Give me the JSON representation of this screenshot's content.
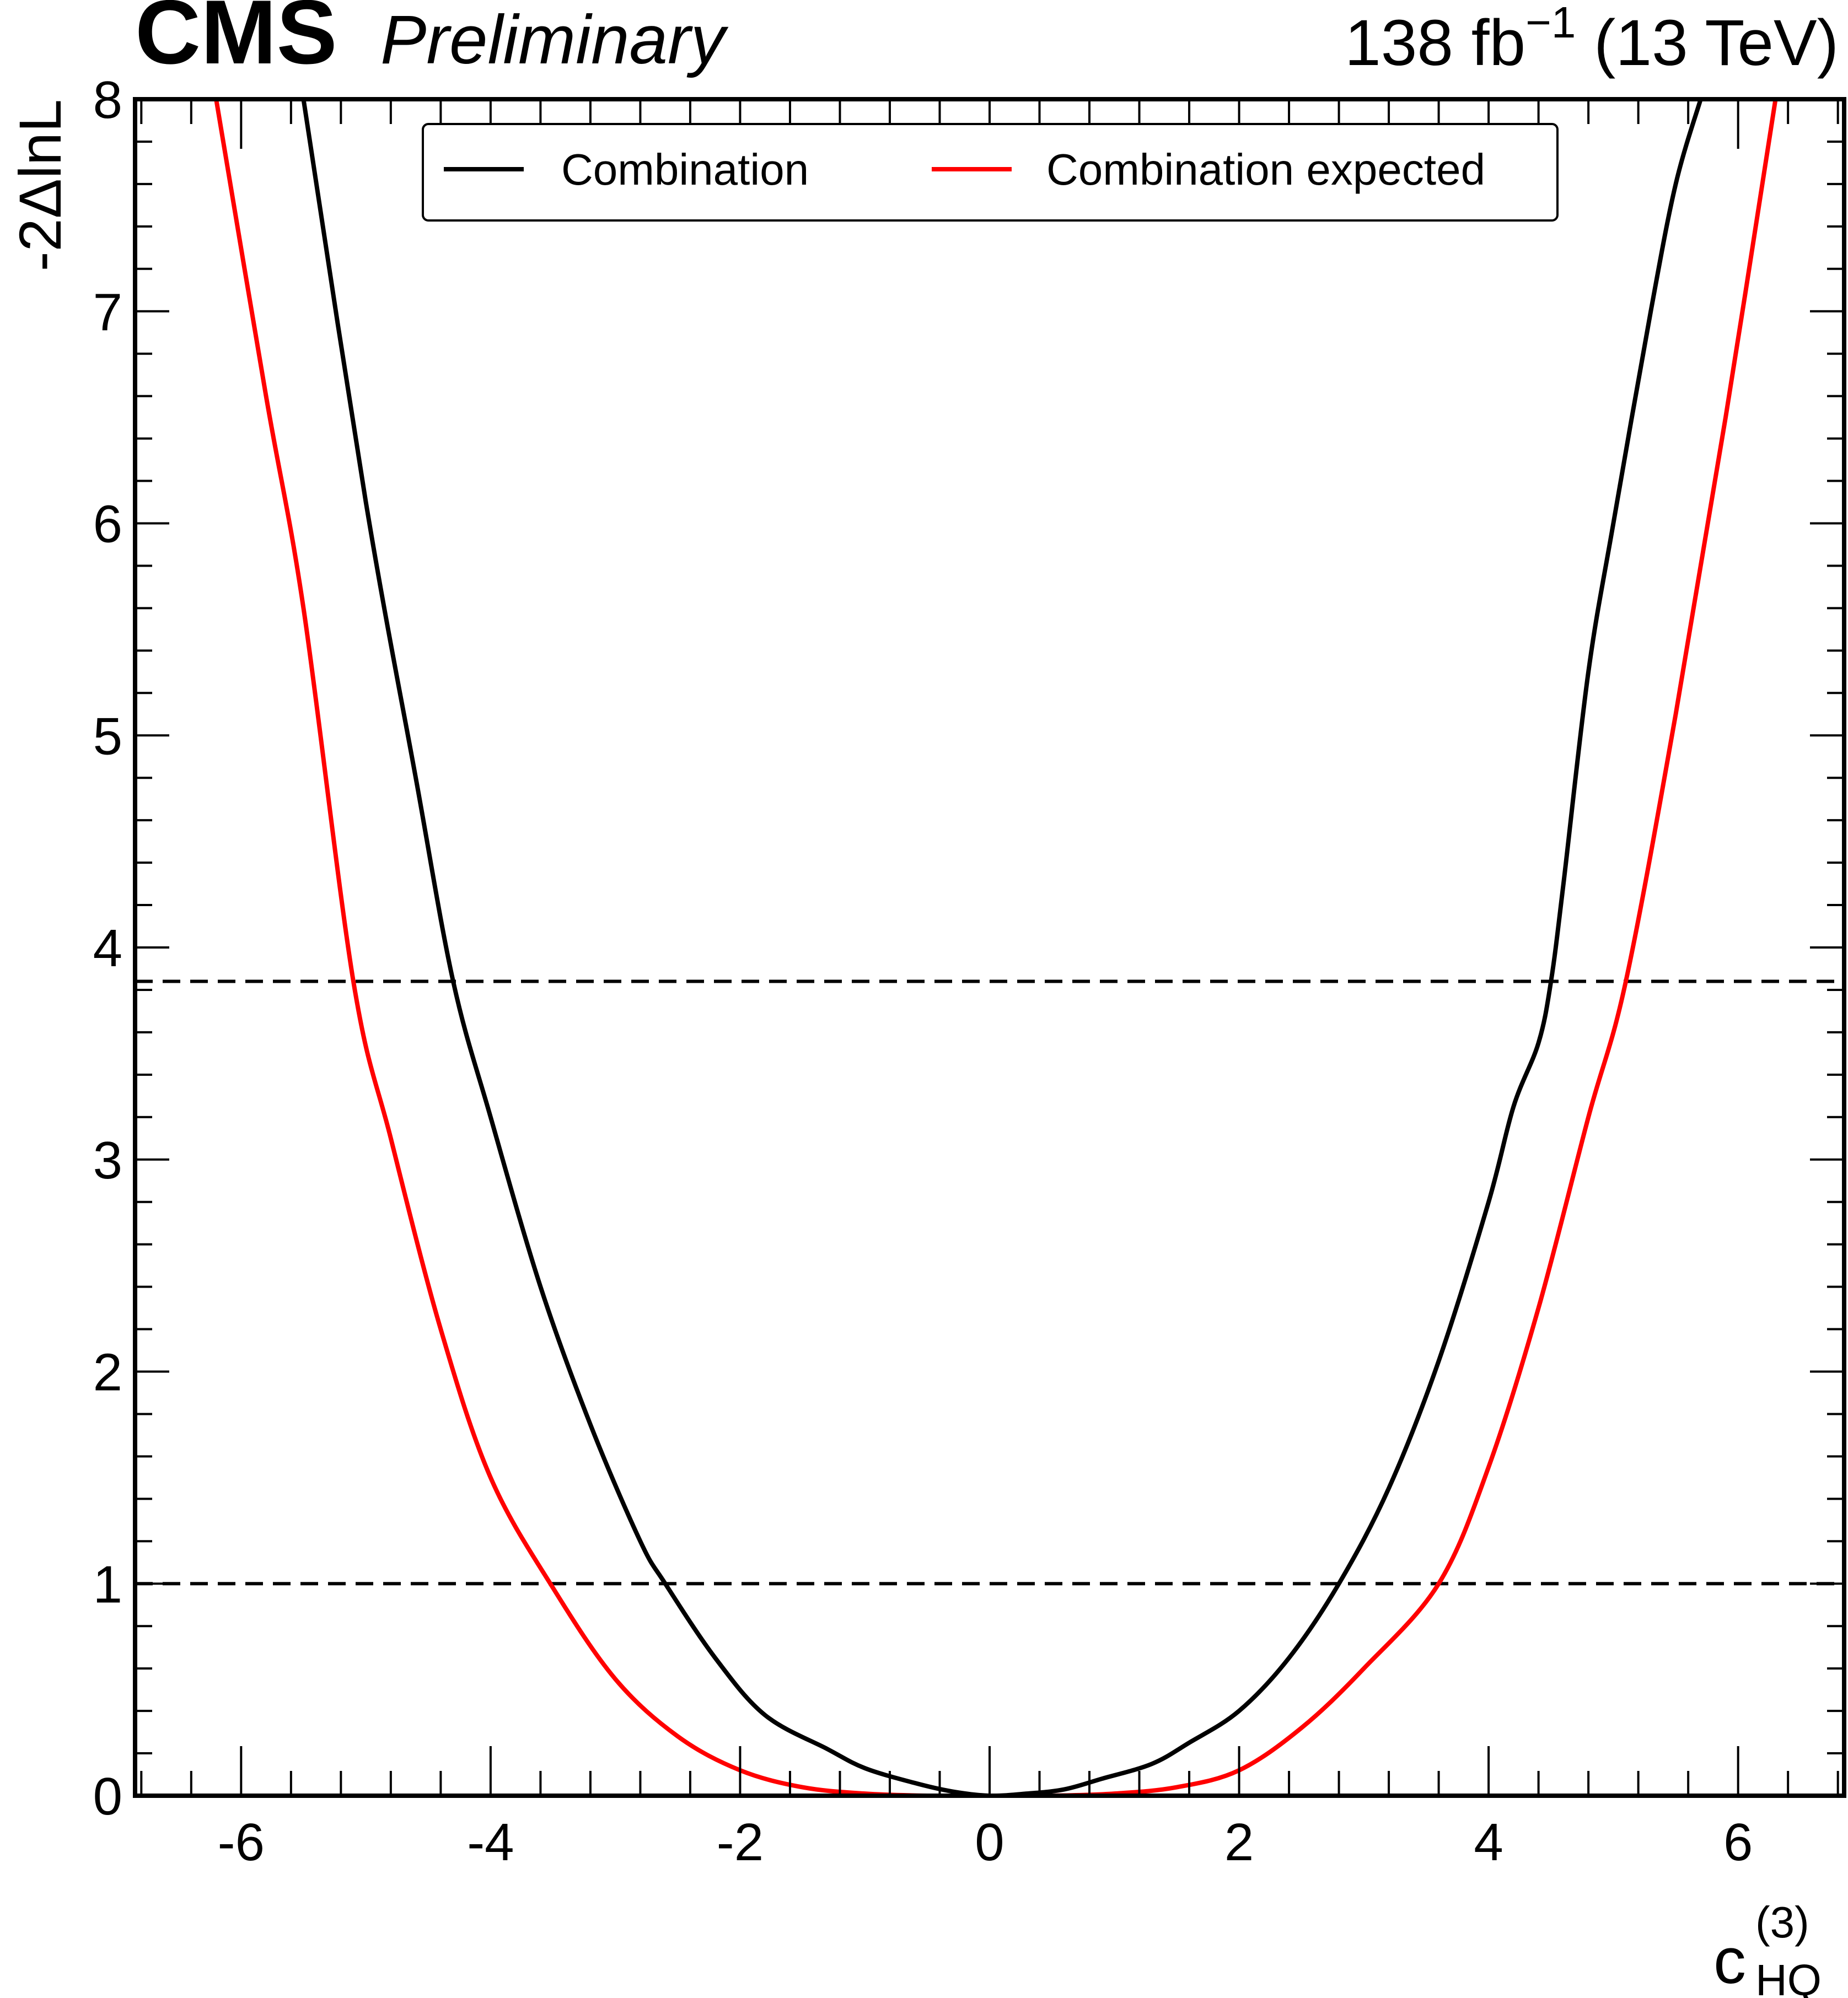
{
  "header": {
    "experiment": "CMS",
    "status": "Preliminary",
    "lumi": "138 fb",
    "lumi_exp": "−1",
    "energy": " (13 TeV)"
  },
  "chart_data": {
    "type": "line",
    "xlabel": "c",
    "xlabel_sub": "HQ",
    "xlabel_sup": "(3)",
    "ylabel": "-2ΔlnL",
    "xlim": [
      -6.85,
      6.85
    ],
    "ylim": [
      0,
      8
    ],
    "x_ticks": [
      -6,
      -4,
      -2,
      0,
      2,
      4,
      6
    ],
    "x_tick_labels": [
      "-6",
      "-4",
      "-2",
      "0",
      "2",
      "4",
      "6"
    ],
    "y_ticks": [
      0,
      1,
      2,
      3,
      4,
      5,
      6,
      7,
      8
    ],
    "y_tick_labels": [
      "0",
      "1",
      "2",
      "3",
      "4",
      "5",
      "6",
      "7",
      "8"
    ],
    "grid": false,
    "legend_position": "top-center",
    "reference_lines": [
      {
        "y": 1.0,
        "style": "dashed",
        "color": "#000000"
      },
      {
        "y": 3.84,
        "style": "dashed",
        "color": "#000000"
      }
    ],
    "series": [
      {
        "name": "Combination",
        "color": "#000000",
        "x": [
          -5.5,
          -5.0,
          -4.6,
          -4.3,
          -4.0,
          -3.6,
          -3.2,
          -2.8,
          -2.6,
          -2.2,
          -1.8,
          -1.3,
          -1.0,
          -0.6,
          -0.3,
          0.0,
          0.3,
          0.6,
          0.9,
          1.3,
          1.6,
          2.0,
          2.4,
          2.8,
          3.2,
          3.6,
          4.0,
          4.2,
          4.4,
          4.5,
          4.6,
          4.8,
          5.0,
          5.3,
          5.5,
          5.7
        ],
        "y": [
          8.0,
          6.1,
          4.8,
          3.84,
          3.2,
          2.4,
          1.75,
          1.2,
          1.0,
          0.65,
          0.38,
          0.22,
          0.13,
          0.06,
          0.02,
          0.0,
          0.01,
          0.03,
          0.08,
          0.15,
          0.25,
          0.4,
          0.65,
          1.0,
          1.45,
          2.05,
          2.8,
          3.25,
          3.55,
          3.84,
          4.3,
          5.3,
          6.0,
          7.0,
          7.6,
          8.0
        ]
      },
      {
        "name": "Combination expected",
        "color": "#ff0000",
        "x": [
          -6.2,
          -5.8,
          -5.5,
          -5.1,
          -4.8,
          -4.4,
          -4.0,
          -3.5,
          -3.0,
          -2.5,
          -2.0,
          -1.5,
          -1.0,
          -0.5,
          0.0,
          0.5,
          1.0,
          1.5,
          2.0,
          2.5,
          3.0,
          3.6,
          4.0,
          4.4,
          4.8,
          5.1,
          5.5,
          5.9,
          6.3
        ],
        "y": [
          8.0,
          6.6,
          5.6,
          3.84,
          3.1,
          2.2,
          1.5,
          0.98,
          0.55,
          0.28,
          0.12,
          0.04,
          0.01,
          0.0,
          0.0,
          0.0,
          0.01,
          0.04,
          0.12,
          0.32,
          0.6,
          1.0,
          1.55,
          2.3,
          3.2,
          3.84,
          5.1,
          6.5,
          8.0
        ]
      }
    ]
  }
}
